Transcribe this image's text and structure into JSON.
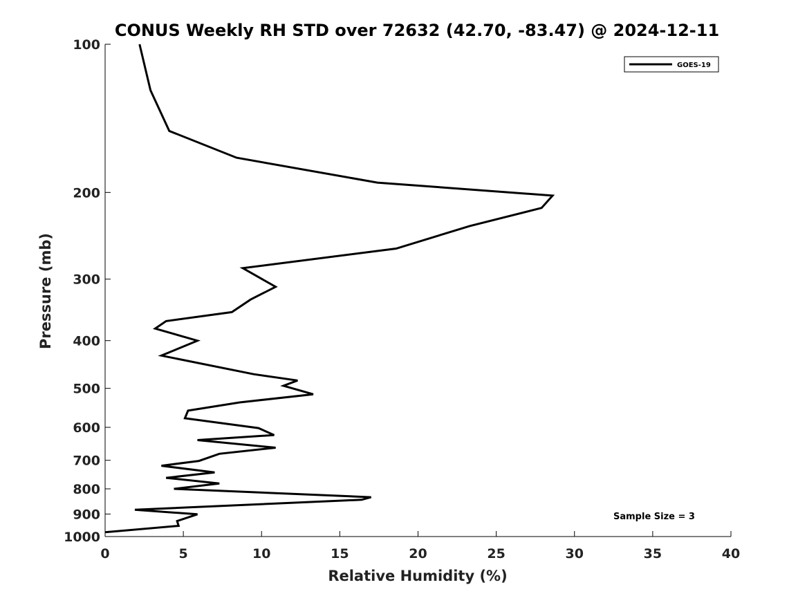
{
  "chart_data": {
    "type": "line",
    "title": "CONUS Weekly RH STD over 72632 (42.70, -83.47) @ 2024-12-11",
    "xlabel": "Relative Humidity (%)",
    "ylabel": "Pressure (mb)",
    "xlim": [
      0,
      40
    ],
    "ylim": [
      100,
      1000
    ],
    "yscale": "log",
    "y_reversed": true,
    "xticks": [
      0,
      5,
      10,
      15,
      20,
      25,
      30,
      35,
      40
    ],
    "xtick_labels": [
      "0",
      "5",
      "10",
      "15",
      "20",
      "25",
      "30",
      "35",
      "40"
    ],
    "yticks": [
      100,
      200,
      300,
      400,
      500,
      600,
      700,
      800,
      900,
      1000
    ],
    "ytick_labels": [
      "100",
      "200",
      "300",
      "400",
      "500",
      "600",
      "700",
      "800",
      "900",
      "1000"
    ],
    "grid": false,
    "legend_position": "top-right",
    "annotation": "Sample Size = 3",
    "series": [
      {
        "name": "GOES-19",
        "color": "#000000",
        "x": [
          2.2,
          2.9,
          4.1,
          8.4,
          17.4,
          28.6,
          27.9,
          23.3,
          18.6,
          8.8,
          10.9,
          9.3,
          8.1,
          3.9,
          3.2,
          5.9,
          3.6,
          9.5,
          12.3,
          11.4,
          13.3,
          8.6,
          5.3,
          5.1,
          9.8,
          10.8,
          5.9,
          10.9,
          7.3,
          6.0,
          3.6,
          7.0,
          3.9,
          7.3,
          4.4,
          17.0,
          16.4,
          1.9,
          5.9,
          4.6,
          4.7,
          0.0
        ],
        "y": [
          100,
          124,
          150,
          170,
          191,
          203,
          215,
          234,
          260,
          285,
          311,
          330,
          350,
          365,
          378,
          400,
          429,
          468,
          482,
          494,
          514,
          534,
          555,
          575,
          602,
          622,
          637,
          660,
          679,
          702,
          718,
          741,
          760,
          780,
          800,
          832,
          842,
          882,
          901,
          930,
          951,
          980
        ]
      }
    ]
  }
}
